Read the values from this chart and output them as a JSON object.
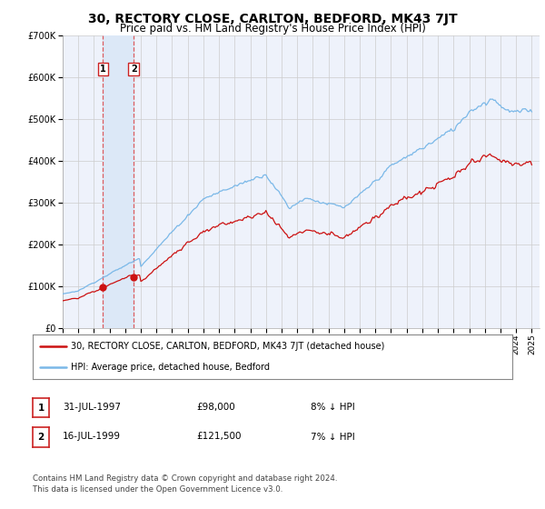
{
  "title": "30, RECTORY CLOSE, CARLTON, BEDFORD, MK43 7JT",
  "subtitle": "Price paid vs. HM Land Registry's House Price Index (HPI)",
  "ylim": [
    0,
    700000
  ],
  "yticks": [
    0,
    100000,
    200000,
    300000,
    400000,
    500000,
    600000,
    700000
  ],
  "ytick_labels": [
    "£0",
    "£100K",
    "£200K",
    "£300K",
    "£400K",
    "£500K",
    "£600K",
    "£700K"
  ],
  "sale1_date": 1997.583,
  "sale1_price": 98000,
  "sale1_label": "1",
  "sale2_date": 1999.542,
  "sale2_price": 121500,
  "sale2_label": "2",
  "hpi_line_color": "#7ab8e8",
  "price_line_color": "#cc1111",
  "dot_color": "#cc1111",
  "background_color": "#eef2fb",
  "shade_color": "#dce8f7",
  "grid_color": "#cccccc",
  "legend_line1": "30, RECTORY CLOSE, CARLTON, BEDFORD, MK43 7JT (detached house)",
  "legend_line2": "HPI: Average price, detached house, Bedford",
  "table_row1": [
    "1",
    "31-JUL-1997",
    "£98,000",
    "8% ↓ HPI"
  ],
  "table_row2": [
    "2",
    "16-JUL-1999",
    "£121,500",
    "7% ↓ HPI"
  ],
  "footer": "Contains HM Land Registry data © Crown copyright and database right 2024.\nThis data is licensed under the Open Government Licence v3.0.",
  "title_fontsize": 10,
  "subtitle_fontsize": 8.5,
  "tick_fontsize": 7
}
